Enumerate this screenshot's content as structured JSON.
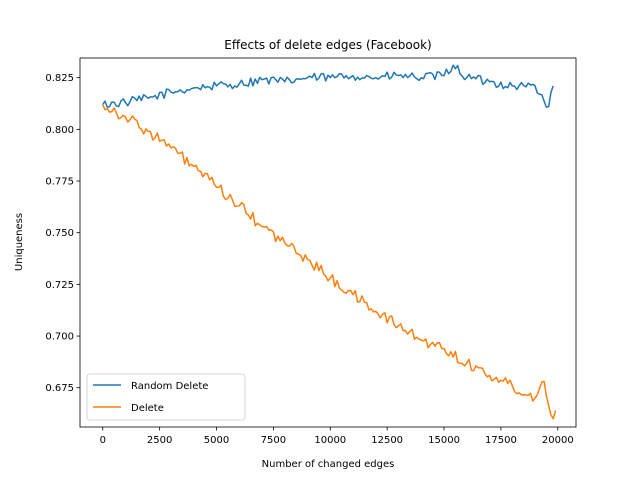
{
  "chart_data": {
    "type": "line",
    "title": "Effects of delete edges (Facebook)",
    "xlabel": "Number of changed edges",
    "ylabel": "Uniqueness",
    "xlim": [
      -1000,
      20800
    ],
    "ylim": [
      0.656,
      0.8345
    ],
    "xticks": [
      0,
      2500,
      5000,
      7500,
      10000,
      12500,
      15000,
      17500,
      20000
    ],
    "yticks": [
      0.675,
      0.7,
      0.725,
      0.75,
      0.775,
      0.8,
      0.825
    ],
    "xtick_labels": [
      "0",
      "2500",
      "5000",
      "7500",
      "10000",
      "12500",
      "15000",
      "17500",
      "20000"
    ],
    "ytick_labels": [
      "0.675",
      "0.700",
      "0.725",
      "0.750",
      "0.775",
      "0.800",
      "0.825"
    ],
    "legend_position": "lower-left",
    "grid": false,
    "series": [
      {
        "name": "Random Delete",
        "color": "#1f77b4",
        "x": [
          0,
          1000,
          2000,
          3000,
          4000,
          5000,
          6000,
          7000,
          8000,
          9000,
          10000,
          11000,
          12000,
          13000,
          14000,
          15000,
          15400,
          16000,
          17000,
          18000,
          19000,
          19600,
          19800
        ],
        "y": [
          0.812,
          0.813,
          0.815,
          0.818,
          0.82,
          0.821,
          0.822,
          0.824,
          0.823,
          0.825,
          0.825,
          0.826,
          0.825,
          0.826,
          0.825,
          0.826,
          0.831,
          0.825,
          0.823,
          0.821,
          0.821,
          0.811,
          0.821
        ]
      },
      {
        "name": "Delete",
        "color": "#ff7f0e",
        "x": [
          0,
          1000,
          2000,
          3000,
          4000,
          5000,
          6000,
          7000,
          8000,
          9000,
          10000,
          11000,
          12000,
          13000,
          14000,
          15000,
          16000,
          17000,
          18000,
          19000,
          19400,
          19800,
          19900
        ],
        "y": [
          0.812,
          0.806,
          0.799,
          0.791,
          0.782,
          0.772,
          0.763,
          0.753,
          0.745,
          0.737,
          0.728,
          0.72,
          0.712,
          0.705,
          0.698,
          0.694,
          0.687,
          0.681,
          0.676,
          0.67,
          0.678,
          0.66,
          0.664
        ]
      }
    ]
  }
}
